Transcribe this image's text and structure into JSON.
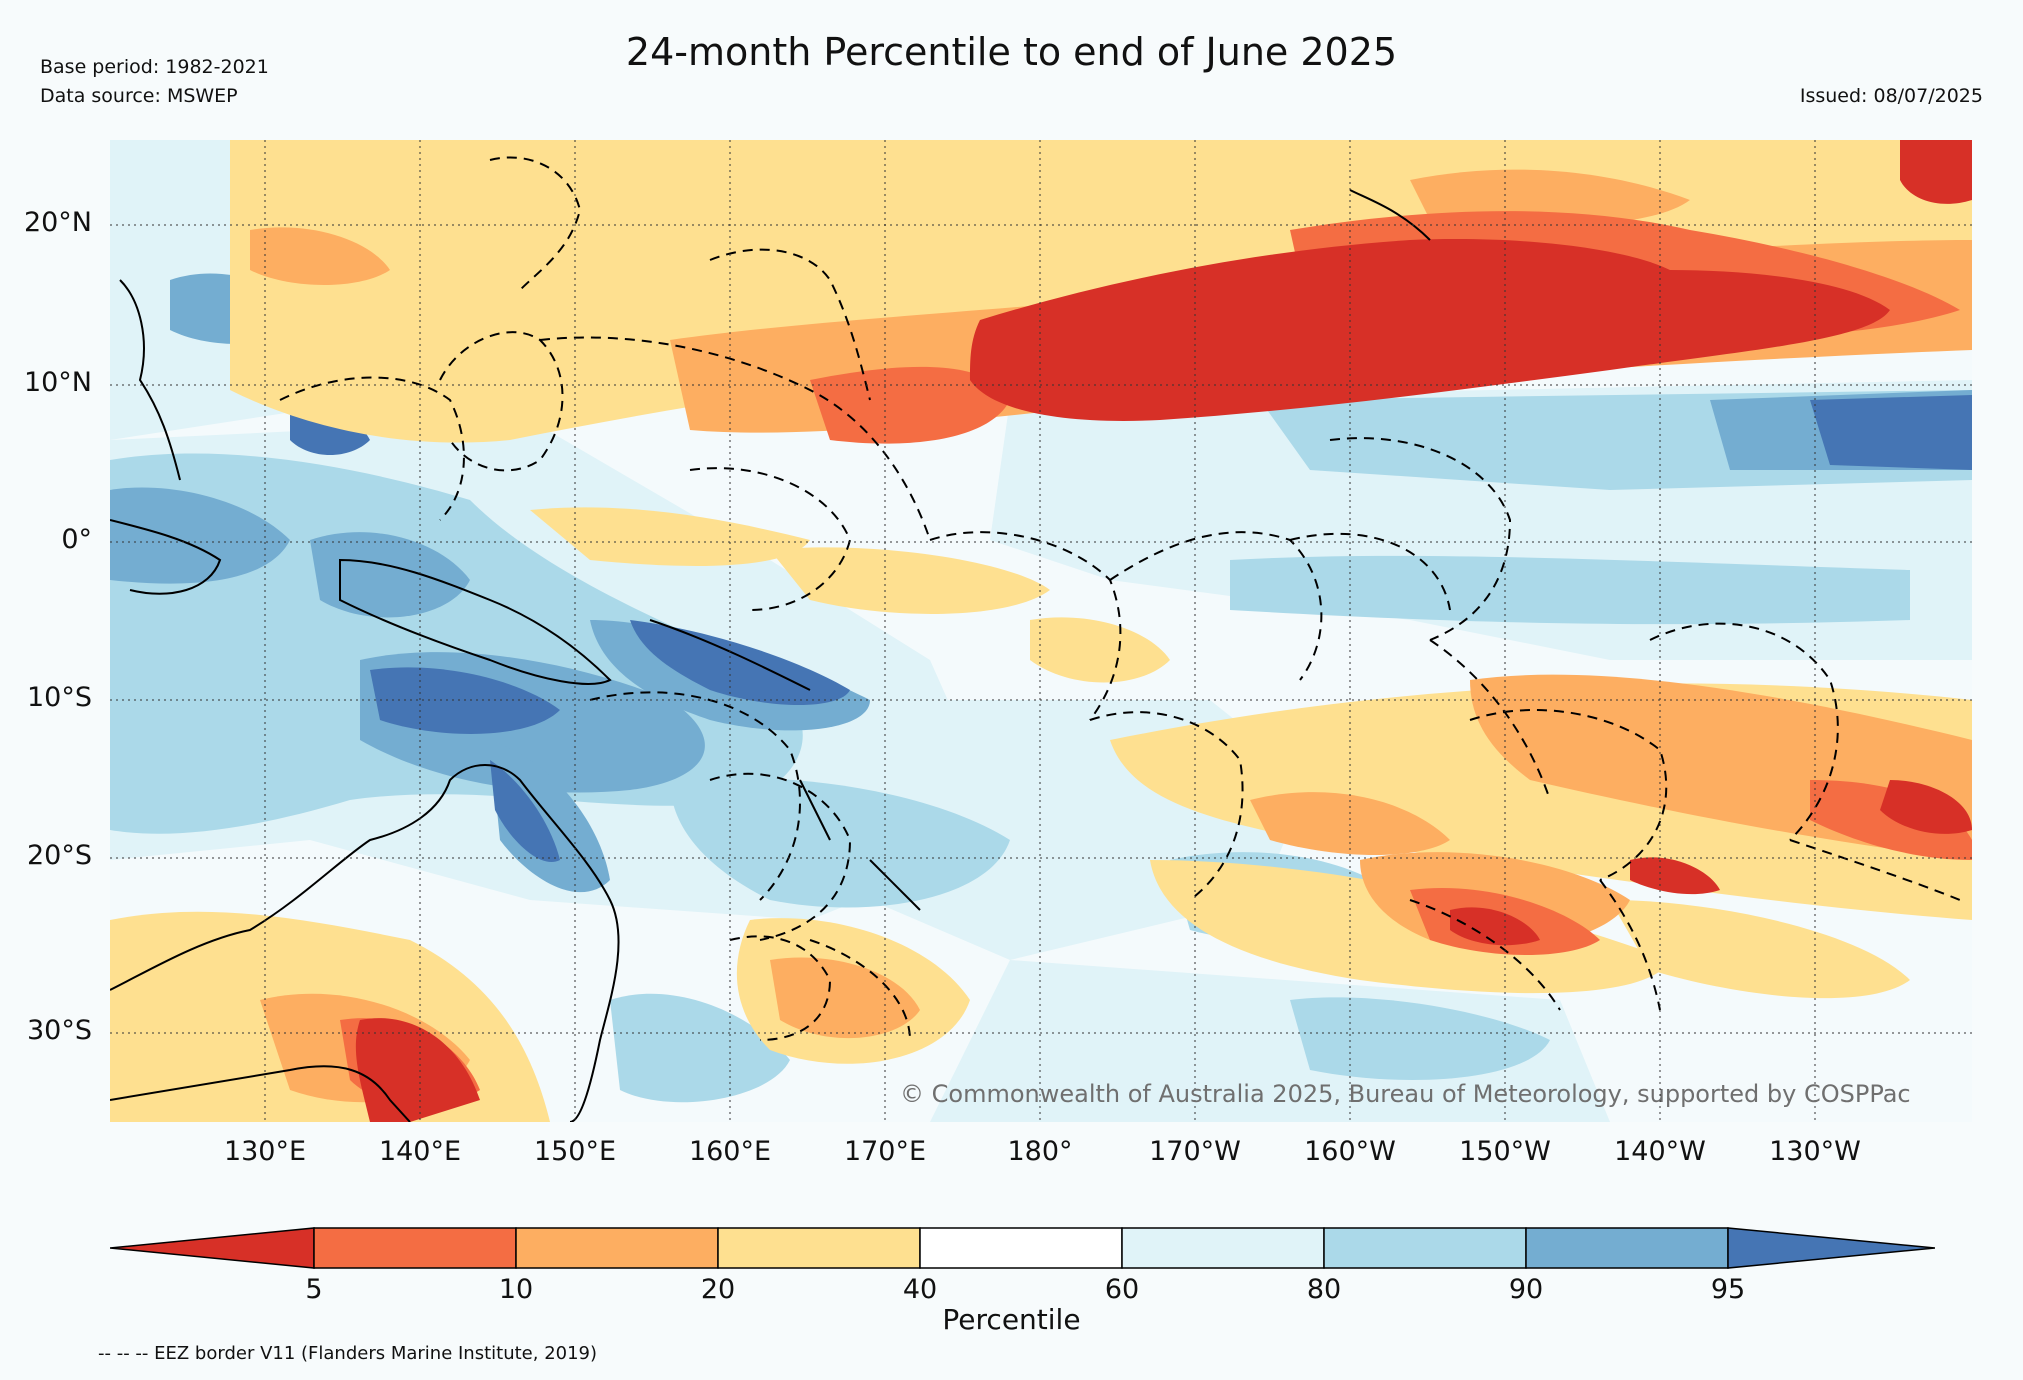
{
  "header": {
    "title": "24-month Percentile to end of June 2025",
    "base_period": "Base period: 1982-2021",
    "data_source": "Data source: MSWEP",
    "issued": "Issued: 08/07/2025"
  },
  "map": {
    "region": "Western and Central Pacific",
    "lat_labels": [
      "20°N",
      "10°N",
      "0°",
      "10°S",
      "20°S",
      "30°S"
    ],
    "lon_labels": [
      "130°E",
      "140°E",
      "150°E",
      "160°E",
      "170°E",
      "180°",
      "170°W",
      "160°W",
      "150°W",
      "140°W",
      "130°W"
    ],
    "copyright": "© Commonwealth of Australia 2025, Bureau of Meteorology, supported by COSPPac",
    "colors": {
      "below_5": "#d73027",
      "p5_10": "#f46d43",
      "p10_20": "#fdae61",
      "p20_40": "#fee090",
      "p40_60": "#ffffff",
      "p60_80": "#e0f3f8",
      "p80_90": "#abd9e9",
      "p90_95": "#74add1",
      "above_95": "#4575b4",
      "land_outline": "#000000",
      "eez_dash": "#000000"
    }
  },
  "colorbar": {
    "label": "Percentile",
    "ticks": [
      "5",
      "10",
      "20",
      "40",
      "60",
      "80",
      "90",
      "95"
    ]
  },
  "footer": {
    "eez_note": "-- -- -- EEZ border V11 (Flanders Marine Institute, 2019)"
  }
}
